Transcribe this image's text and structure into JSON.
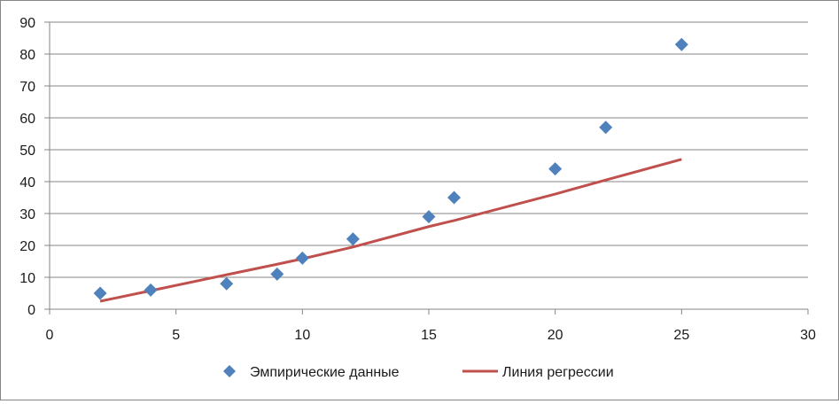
{
  "chart_data": {
    "type": "scatter",
    "title": "",
    "xlabel": "",
    "ylabel": "",
    "xlim": [
      0,
      30
    ],
    "ylim": [
      0,
      90
    ],
    "x_ticks": [
      0,
      5,
      10,
      15,
      20,
      25,
      30
    ],
    "y_ticks": [
      0,
      10,
      20,
      30,
      40,
      50,
      60,
      70,
      80,
      90
    ],
    "grid": "horizontal",
    "legend_position": "bottom",
    "series": [
      {
        "name": "Эмпирические данные",
        "kind": "scatter",
        "marker": "diamond",
        "color": "#4F81BD",
        "x": [
          2,
          4,
          7,
          9,
          10,
          12,
          15,
          16,
          20,
          22,
          25
        ],
        "y": [
          5,
          6,
          8,
          11,
          16,
          22,
          29,
          35,
          44,
          57,
          83
        ]
      },
      {
        "name": "Линия регрессии",
        "kind": "line",
        "color": "#C0504D",
        "x": [
          2,
          4,
          7,
          9,
          10,
          12,
          15,
          16,
          20,
          22,
          25
        ],
        "y": [
          2.5,
          5.8,
          10.8,
          14.1,
          15.8,
          19.5,
          25.9,
          27.8,
          36.1,
          40.5,
          47
        ]
      }
    ]
  }
}
